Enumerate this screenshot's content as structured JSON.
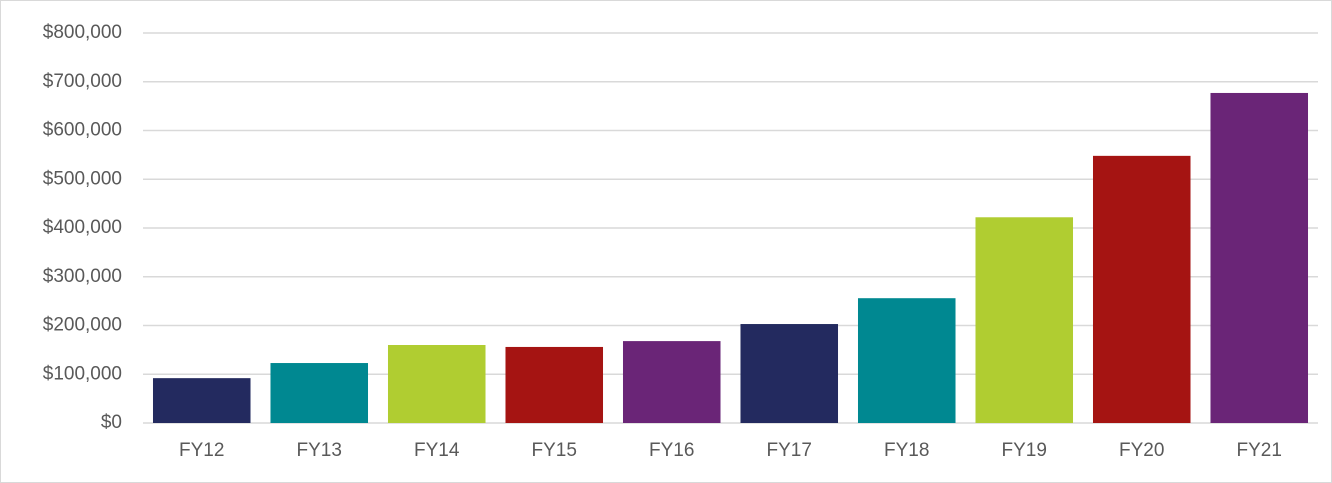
{
  "chart_data": {
    "type": "bar",
    "categories": [
      "FY12",
      "FY13",
      "FY14",
      "FY15",
      "FY16",
      "FY17",
      "FY18",
      "FY19",
      "FY20",
      "FY21"
    ],
    "values": [
      92000,
      123000,
      160000,
      156000,
      168000,
      203000,
      256000,
      422000,
      548000,
      677000
    ],
    "colors": [
      "#232a5f",
      "#008891",
      "#b0cd31",
      "#a51412",
      "#6a2577",
      "#232a5f",
      "#008891",
      "#b0cd31",
      "#a51412",
      "#6a2577"
    ],
    "ylim": [
      0,
      800000
    ],
    "yticks": [
      {
        "value": 0,
        "label": "$0"
      },
      {
        "value": 100000,
        "label": "$100,000"
      },
      {
        "value": 200000,
        "label": "$200,000"
      },
      {
        "value": 300000,
        "label": "$300,000"
      },
      {
        "value": 400000,
        "label": "$400,000"
      },
      {
        "value": 500000,
        "label": "$500,000"
      },
      {
        "value": 600000,
        "label": "$600,000"
      },
      {
        "value": 700000,
        "label": "$700,000"
      },
      {
        "value": 800000,
        "label": "$800,000"
      }
    ],
    "grid": true
  }
}
